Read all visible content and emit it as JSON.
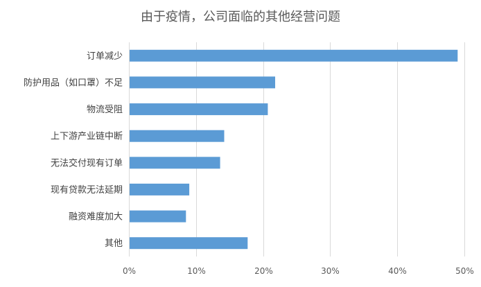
{
  "chart_data": {
    "type": "bar",
    "orientation": "horizontal",
    "title": "由于疫情，公司面临的其他经营问题",
    "xlabel": "",
    "ylabel": "",
    "categories": [
      "订单减少",
      "防护用品（如口罩）不足",
      "物流受阻",
      "上下游产业链中断",
      "无法交付现有订单",
      "现有贷款无法延期",
      "融资难度加大",
      "其他"
    ],
    "values": [
      49,
      21.8,
      20.7,
      14.2,
      13.6,
      9.0,
      8.5,
      17.7
    ],
    "unit": "%",
    "xlim": [
      0,
      50
    ],
    "xticks": [
      "0%",
      "10%",
      "20%",
      "30%",
      "40%",
      "50%"
    ],
    "grid": true,
    "legend": "none",
    "bar_color": "#5b9bd5"
  }
}
